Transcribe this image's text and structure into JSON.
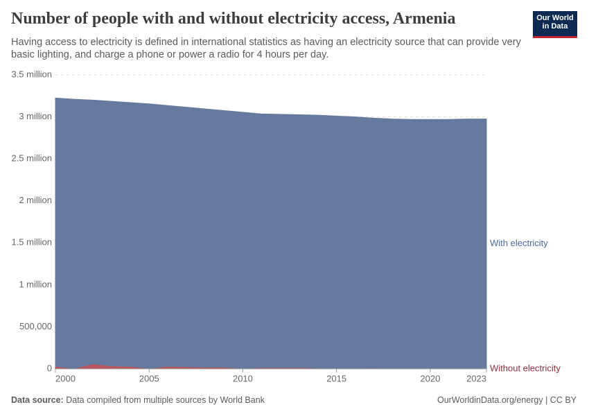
{
  "chart_data": {
    "type": "stacked_area",
    "title": "Number of people with and without electricity access, Armenia",
    "subtitle": "Having access to electricity is defined in international statistics as having an electricity source that can provide very basic lighting, and charge a phone or power a radio for 4 hours per day.",
    "logo": "Our World in Data",
    "source_label": "Data source:",
    "source": "Data compiled from multiple sources by World Bank",
    "credit": "OurWorldinData.org/energy | CC BY",
    "x": [
      2000,
      2001,
      2002,
      2003,
      2004,
      2005,
      2006,
      2007,
      2008,
      2009,
      2010,
      2011,
      2012,
      2013,
      2014,
      2015,
      2016,
      2017,
      2018,
      2019,
      2020,
      2021,
      2022,
      2023
    ],
    "series": [
      {
        "name": "Without electricity",
        "color": "#b8565c",
        "label_color": "#883039",
        "values": [
          30000,
          5000,
          60000,
          35000,
          30000,
          5000,
          30000,
          25000,
          20000,
          20000,
          5000,
          15000,
          15000,
          15000,
          10000,
          5000,
          5000,
          10000,
          5000,
          5000,
          0,
          0,
          0,
          0
        ]
      },
      {
        "name": "With electricity",
        "color": "#667a9f",
        "label_color": "#4c6a9c",
        "values": [
          3195000,
          3205000,
          3140000,
          3150000,
          3140000,
          3150000,
          3105000,
          3090000,
          3075000,
          3055000,
          3050000,
          3020000,
          3015000,
          3010000,
          3010000,
          3005000,
          2995000,
          2975000,
          2970000,
          2965000,
          2970000,
          2970000,
          2975000,
          2975000
        ]
      }
    ],
    "xlim": [
      2000,
      2023
    ],
    "xticks": [
      2000,
      2005,
      2010,
      2015,
      2020,
      2023
    ],
    "ylim": [
      0,
      3500000
    ],
    "yticks": [
      0,
      {
        "value": 500000,
        "label": "500,000"
      },
      {
        "value": 1000000,
        "label": "1 million"
      },
      {
        "value": 1500000,
        "label": "1.5 million"
      },
      {
        "value": 2000000,
        "label": "2 million"
      },
      {
        "value": 2500000,
        "label": "2.5 million"
      },
      {
        "value": 3000000,
        "label": "3 million"
      },
      {
        "value": 3500000,
        "label": "3.5 million"
      }
    ],
    "grid": true
  }
}
